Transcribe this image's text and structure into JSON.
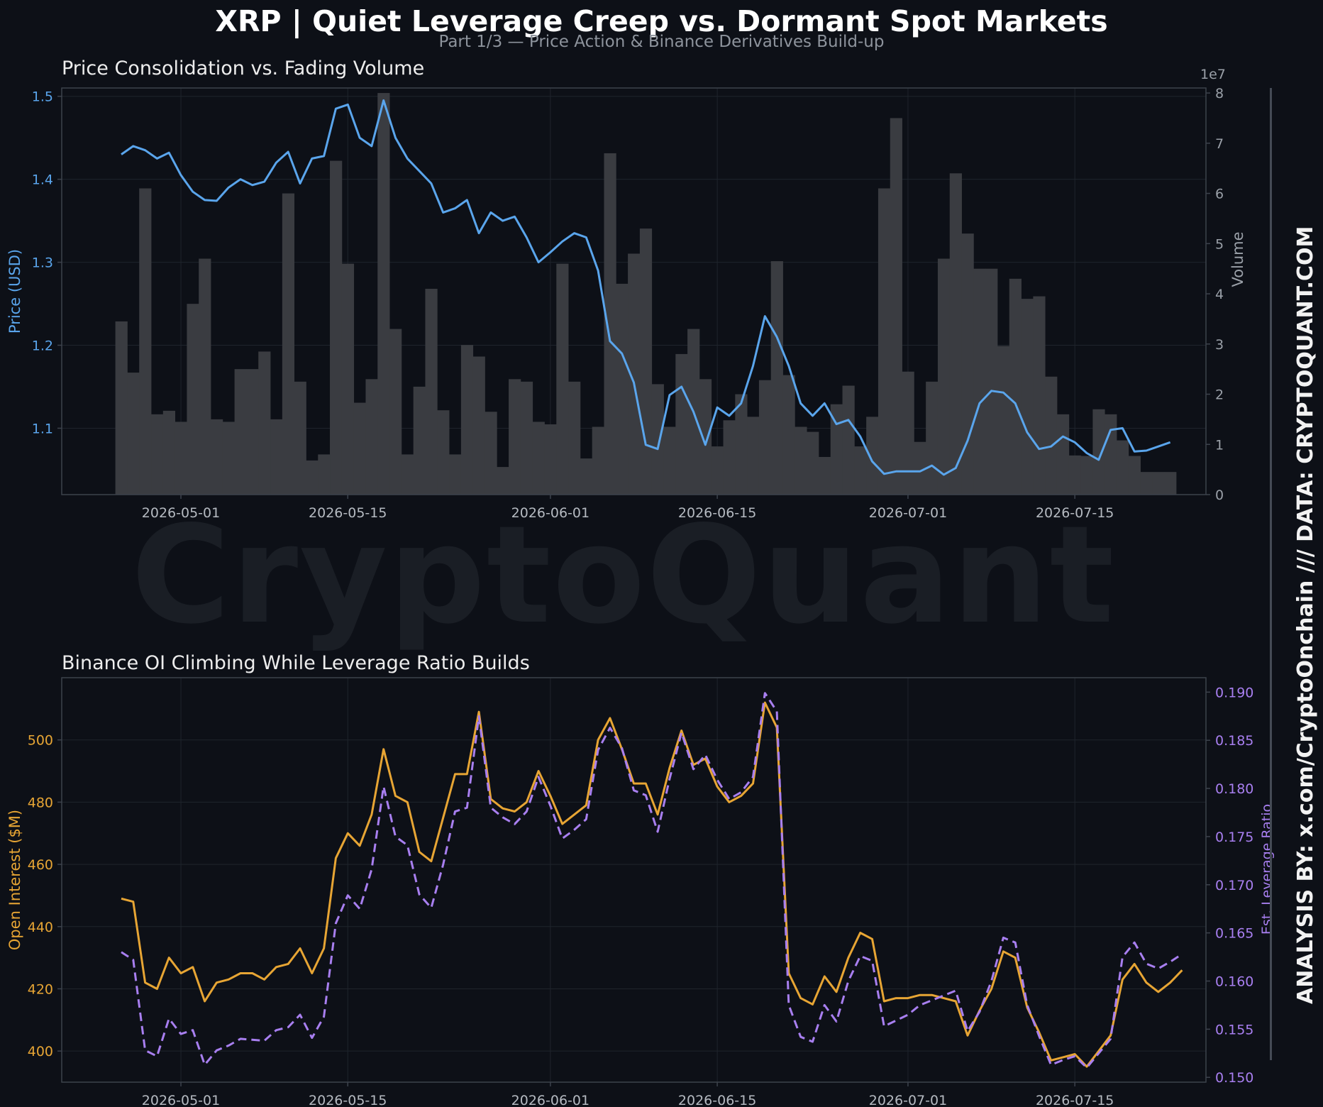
{
  "title": "XRP | Quiet Leverage Creep vs. Dormant Spot Markets",
  "subtitle": "Part 1/3 — Price Action & Binance Derivatives Build-up",
  "watermark": "CryptoQuant",
  "sidebar_text": "ANALYSIS BY: x.com/CryptoOnchain   ///   DATA: CRYPTOQUANT.COM",
  "colors": {
    "background": "#0d1017",
    "price_line": "#5aa5ec",
    "volume_bar": "#3a3c41",
    "open_interest": "#e7a534",
    "leverage_ratio": "#a87ff0",
    "grid": "#1f242c",
    "axis": "#3c424c",
    "tick_text": "#b5bac1"
  },
  "chart_data": [
    {
      "type": "line+bar",
      "title": "Price Consolidation vs. Fading Volume",
      "ylabel": "Price (USD)",
      "y2label": "Volume",
      "y2_exponent_label": "1e7",
      "ylim": [
        1.02,
        1.51
      ],
      "y2lim": [
        0,
        8.1
      ],
      "xlim": [
        "2026-04-21",
        "2026-07-26"
      ],
      "grid": true,
      "yticks": [
        "1.1",
        "1.2",
        "1.3",
        "1.4",
        "1.5"
      ],
      "y2ticks": [
        "0",
        "1",
        "2",
        "3",
        "4",
        "5",
        "6",
        "7",
        "8"
      ],
      "xticks": [
        "2026-05-01",
        "2026-05-15",
        "2026-06-01",
        "2026-06-15",
        "2026-07-01",
        "2026-07-15"
      ],
      "start_date": "2026-04-26",
      "price": [
        1.43,
        1.44,
        1.435,
        1.425,
        1.432,
        1.405,
        1.385,
        1.375,
        1.374,
        1.39,
        1.4,
        1.393,
        1.397,
        1.42,
        1.433,
        1.395,
        1.425,
        1.428,
        1.485,
        1.49,
        1.45,
        1.44,
        1.495,
        1.45,
        1.425,
        1.41,
        1.395,
        1.36,
        1.365,
        1.375,
        1.335,
        1.36,
        1.35,
        1.355,
        1.33,
        1.3,
        1.312,
        1.325,
        1.335,
        1.33,
        1.29,
        1.205,
        1.19,
        1.155,
        1.08,
        1.075,
        1.14,
        1.15,
        1.12,
        1.08,
        1.125,
        1.115,
        1.13,
        1.175,
        1.235,
        1.21,
        1.175,
        1.13,
        1.115,
        1.13,
        1.105,
        1.11,
        1.09,
        1.06,
        1.045,
        1.048,
        1.048,
        1.048,
        1.055,
        1.044,
        1.052,
        1.085,
        1.13,
        1.145,
        1.143,
        1.13,
        1.095,
        1.075,
        1.078,
        1.09,
        1.083,
        1.07,
        1.062,
        1.098,
        1.1,
        1.072,
        1.073,
        1.078,
        1.083
      ],
      "volume": [
        3.45,
        2.43,
        6.1,
        1.6,
        1.67,
        1.45,
        3.8,
        4.7,
        1.5,
        1.45,
        2.5,
        2.5,
        2.85,
        1.5,
        6.0,
        2.25,
        0.68,
        0.8,
        6.65,
        4.6,
        1.83,
        2.3,
        8.0,
        3.3,
        0.8,
        2.15,
        4.1,
        1.68,
        0.8,
        2.98,
        2.75,
        1.65,
        0.55,
        2.3,
        2.25,
        1.45,
        1.4,
        4.6,
        2.25,
        0.72,
        1.35,
        6.8,
        4.2,
        4.8,
        5.3,
        2.2,
        1.35,
        2.8,
        3.3,
        2.3,
        0.96,
        1.48,
        2.0,
        1.55,
        2.28,
        4.65,
        2.38,
        1.35,
        1.25,
        0.75,
        1.8,
        2.17,
        0.96,
        1.55,
        6.1,
        7.5,
        2.45,
        1.05,
        2.25,
        4.7,
        6.4,
        5.2,
        4.5,
        4.5,
        2.96,
        4.3,
        3.9,
        3.95,
        2.35,
        1.6,
        0.78,
        0.77,
        1.7,
        1.6,
        1.08,
        0.77,
        0.45,
        0.45,
        0.45
      ]
    },
    {
      "type": "line",
      "title": "Binance OI Climbing While Leverage Ratio Builds",
      "ylabel": "Open Interest ($M)",
      "y2label": "Est. Leverage Ratio",
      "ylim": [
        390,
        520
      ],
      "y2lim": [
        0.1495,
        0.1915
      ],
      "xlim": [
        "2026-04-21",
        "2026-07-26"
      ],
      "grid": true,
      "yticks": [
        "400",
        "420",
        "440",
        "460",
        "480",
        "500"
      ],
      "y2ticks": [
        "0.150",
        "0.155",
        "0.160",
        "0.165",
        "0.170",
        "0.175",
        "0.180",
        "0.185",
        "0.190"
      ],
      "xticks": [
        "2026-05-01",
        "2026-05-15",
        "2026-06-01",
        "2026-06-15",
        "2026-07-01",
        "2026-07-15"
      ],
      "start_date": "2026-04-26",
      "open_interest": [
        449,
        448,
        422,
        420,
        430,
        425,
        427,
        416,
        422,
        423,
        425,
        425,
        423,
        427,
        428,
        433,
        425,
        433,
        462,
        470,
        466,
        476,
        497,
        482,
        480,
        464,
        461,
        475,
        489,
        489,
        509,
        481,
        478,
        477,
        480,
        490,
        482,
        473,
        476,
        479,
        500,
        507,
        497,
        486,
        486,
        476,
        491,
        503,
        492,
        494,
        485,
        480,
        482,
        486,
        512,
        504,
        425,
        417,
        415,
        424,
        419,
        430,
        438,
        436,
        416,
        417,
        417,
        418,
        418,
        417,
        416,
        405,
        413,
        420,
        432,
        430,
        414,
        406,
        397,
        398,
        399,
        395,
        400,
        405,
        423,
        428,
        422,
        419,
        422,
        426
      ],
      "leverage_ratio": [
        0.163,
        0.1622,
        0.1528,
        0.1522,
        0.1561,
        0.1545,
        0.1549,
        0.1513,
        0.1528,
        0.1533,
        0.154,
        0.1539,
        0.1538,
        0.1549,
        0.1552,
        0.1565,
        0.1541,
        0.1563,
        0.166,
        0.1689,
        0.1675,
        0.1716,
        0.1802,
        0.175,
        0.1741,
        0.169,
        0.1676,
        0.1721,
        0.1776,
        0.178,
        0.1875,
        0.178,
        0.177,
        0.1763,
        0.1776,
        0.1812,
        0.1782,
        0.1748,
        0.1757,
        0.1768,
        0.184,
        0.1863,
        0.1842,
        0.1798,
        0.1793,
        0.1755,
        0.181,
        0.1858,
        0.182,
        0.1835,
        0.1809,
        0.1789,
        0.1796,
        0.1812,
        0.1899,
        0.188,
        0.1575,
        0.1542,
        0.1537,
        0.1575,
        0.1558,
        0.16,
        0.1626,
        0.1621,
        0.1553,
        0.1559,
        0.1565,
        0.1575,
        0.158,
        0.1585,
        0.159,
        0.1548,
        0.1568,
        0.16,
        0.1645,
        0.164,
        0.1575,
        0.1543,
        0.1513,
        0.1518,
        0.1522,
        0.151,
        0.1525,
        0.154,
        0.1625,
        0.164,
        0.1618,
        0.1613,
        0.162,
        0.1628
      ]
    }
  ]
}
